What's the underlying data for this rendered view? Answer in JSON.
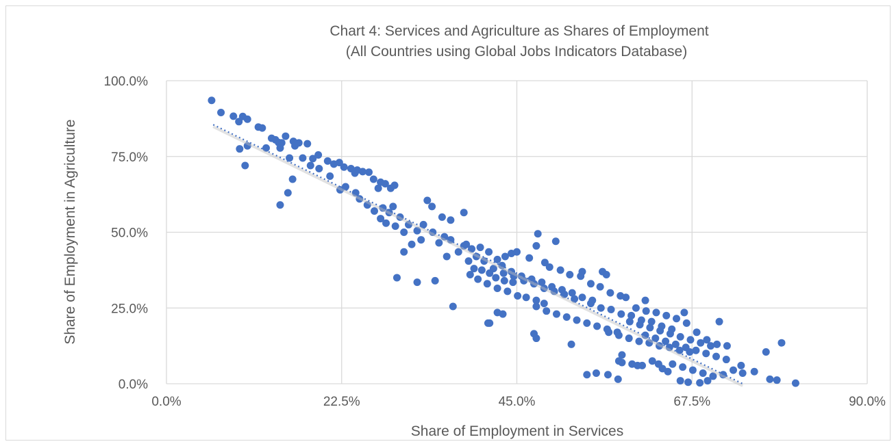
{
  "chart_data": {
    "type": "scatter",
    "title": "Chart 4: Services and Agriculture as Shares of Employment",
    "subtitle": "(All Countries using Global Jobs Indicators Database)",
    "xlabel": "Share of Employment in Services",
    "ylabel": "Share of Employment in Agriculture",
    "xlim": [
      0,
      90
    ],
    "ylim": [
      0,
      100
    ],
    "x_ticks": [
      "0.0%",
      "22.5%",
      "45.0%",
      "67.5%",
      "90.0%"
    ],
    "y_ticks": [
      "0.0%",
      "25.0%",
      "50.0%",
      "75.0%",
      "100.0%"
    ],
    "grid": true,
    "legend": "none",
    "color": "#4472c4",
    "trendline": {
      "style": "dotted linear",
      "x": [
        6,
        74
      ],
      "y": [
        85.5,
        0
      ]
    },
    "points": [
      [
        5.8,
        93.5
      ],
      [
        7,
        89.5
      ],
      [
        8.6,
        88.3
      ],
      [
        9.3,
        86.5
      ],
      [
        9.8,
        88.2
      ],
      [
        10.4,
        87.3
      ],
      [
        9.4,
        77.5
      ],
      [
        10.4,
        78.5
      ],
      [
        10.1,
        72
      ],
      [
        11.8,
        84.7
      ],
      [
        12.3,
        84.4
      ],
      [
        12.8,
        77.8
      ],
      [
        13.5,
        81
      ],
      [
        14,
        80.5
      ],
      [
        14.4,
        79.6
      ],
      [
        14.8,
        79.5
      ],
      [
        15.3,
        81.7
      ],
      [
        14.6,
        77.8
      ],
      [
        15.8,
        74.5
      ],
      [
        16.3,
        80
      ],
      [
        17,
        79.5
      ],
      [
        16.5,
        78.5
      ],
      [
        18.1,
        79.2
      ],
      [
        17.5,
        74.5
      ],
      [
        18.8,
        74.3
      ],
      [
        19.5,
        75.5
      ],
      [
        18.5,
        72
      ],
      [
        19.6,
        71
      ],
      [
        20.7,
        73.5
      ],
      [
        21.5,
        72.5
      ],
      [
        22.2,
        73
      ],
      [
        22.8,
        71.5
      ],
      [
        23.7,
        71
      ],
      [
        24.5,
        70.5
      ],
      [
        25.2,
        70
      ],
      [
        24.2,
        69.5
      ],
      [
        26,
        69.8
      ],
      [
        26.6,
        67.5
      ],
      [
        27.5,
        66.5
      ],
      [
        27.2,
        64.5
      ],
      [
        28.1,
        66
      ],
      [
        28.8,
        64.5
      ],
      [
        29.3,
        65.5
      ],
      [
        21,
        68.5
      ],
      [
        22.3,
        64
      ],
      [
        23,
        65
      ],
      [
        24.3,
        63
      ],
      [
        24.8,
        61
      ],
      [
        25.8,
        59
      ],
      [
        26.7,
        57
      ],
      [
        27.5,
        54.5
      ],
      [
        28.2,
        53
      ],
      [
        29.4,
        52
      ],
      [
        30.5,
        50
      ],
      [
        27.8,
        58
      ],
      [
        28.6,
        56.5
      ],
      [
        29.1,
        58.5
      ],
      [
        30,
        55
      ],
      [
        31.1,
        52.5
      ],
      [
        32.2,
        50.5
      ],
      [
        33,
        52.5
      ],
      [
        33.5,
        60.5
      ],
      [
        34.1,
        58.5
      ],
      [
        35.4,
        55
      ],
      [
        36.5,
        54
      ],
      [
        38.2,
        56.5
      ],
      [
        35,
        46.5
      ],
      [
        36.5,
        47.5
      ],
      [
        38.2,
        45.5
      ],
      [
        39.2,
        44.5
      ],
      [
        40.3,
        45
      ],
      [
        41.4,
        43.5
      ],
      [
        36,
        42
      ],
      [
        37.5,
        43.5
      ],
      [
        38.8,
        40.5
      ],
      [
        39.5,
        38
      ],
      [
        40.5,
        37.5
      ],
      [
        41.5,
        36.5
      ],
      [
        42.3,
        35
      ],
      [
        43.4,
        34
      ],
      [
        44.5,
        33.5
      ],
      [
        39,
        36
      ],
      [
        40,
        34.5
      ],
      [
        41.2,
        33
      ],
      [
        42.5,
        31.5
      ],
      [
        43.8,
        30.5
      ],
      [
        45.1,
        29
      ],
      [
        46.2,
        28.5
      ],
      [
        47.5,
        27.5
      ],
      [
        48.5,
        26.5
      ],
      [
        42,
        38
      ],
      [
        43.3,
        36.5
      ],
      [
        44.6,
        35.5
      ],
      [
        45.9,
        34
      ],
      [
        47.2,
        33
      ],
      [
        48.5,
        31.5
      ],
      [
        49.8,
        30.5
      ],
      [
        51.1,
        29.5
      ],
      [
        52.4,
        28
      ],
      [
        44.3,
        37
      ],
      [
        45.6,
        35.5
      ],
      [
        46.9,
        34.5
      ],
      [
        48.2,
        33.5
      ],
      [
        49.5,
        32
      ],
      [
        50.8,
        31
      ],
      [
        52.1,
        30
      ],
      [
        53.4,
        28.5
      ],
      [
        54.7,
        27.5
      ],
      [
        47.5,
        25.5
      ],
      [
        48.8,
        24
      ],
      [
        50.1,
        23
      ],
      [
        51.4,
        22
      ],
      [
        52.7,
        21
      ],
      [
        54,
        20
      ],
      [
        55.3,
        19
      ],
      [
        56.6,
        18
      ],
      [
        57.9,
        17
      ],
      [
        54.5,
        26.5
      ],
      [
        55.8,
        25
      ],
      [
        57.1,
        24.5
      ],
      [
        58.4,
        23
      ],
      [
        59.7,
        22.5
      ],
      [
        61,
        21
      ],
      [
        62.3,
        20.5
      ],
      [
        63.6,
        19
      ],
      [
        64.9,
        18
      ],
      [
        56.8,
        17
      ],
      [
        58.1,
        16
      ],
      [
        59.4,
        15
      ],
      [
        60.7,
        14
      ],
      [
        62,
        13.5
      ],
      [
        63.3,
        12.5
      ],
      [
        64.6,
        12
      ],
      [
        65.9,
        11
      ],
      [
        67.2,
        10.5
      ],
      [
        59.5,
        20.5
      ],
      [
        60.8,
        19.5
      ],
      [
        62.1,
        18.5
      ],
      [
        63.4,
        17.5
      ],
      [
        64.7,
        16.5
      ],
      [
        66,
        15.5
      ],
      [
        67.3,
        14.5
      ],
      [
        68.6,
        13.5
      ],
      [
        69.9,
        12.5
      ],
      [
        61.5,
        16
      ],
      [
        62.8,
        15
      ],
      [
        64.1,
        14
      ],
      [
        65.4,
        13
      ],
      [
        66.7,
        12
      ],
      [
        68,
        11
      ],
      [
        69.3,
        10
      ],
      [
        70.6,
        9
      ],
      [
        71.9,
        8
      ],
      [
        58.5,
        7
      ],
      [
        59.8,
        6.5
      ],
      [
        61.1,
        6
      ],
      [
        62.4,
        7.5
      ],
      [
        63.7,
        5
      ],
      [
        65,
        6.5
      ],
      [
        66.3,
        5.5
      ],
      [
        67.6,
        4.5
      ],
      [
        68.9,
        3.5
      ],
      [
        70.2,
        2.5
      ],
      [
        71.5,
        3
      ],
      [
        72.8,
        4.5
      ],
      [
        74,
        3.5
      ],
      [
        66,
        1
      ],
      [
        67,
        0.5
      ],
      [
        68.5,
        0.3
      ],
      [
        69.5,
        1
      ],
      [
        77.5,
        1.5
      ],
      [
        78.4,
        1.2
      ],
      [
        80.8,
        0.2
      ],
      [
        79,
        13.5
      ],
      [
        77,
        10.5
      ],
      [
        75.5,
        4
      ],
      [
        73.8,
        6
      ],
      [
        72,
        12.5
      ],
      [
        71,
        20.5
      ],
      [
        66.5,
        23.5
      ],
      [
        59,
        28.5
      ],
      [
        61.5,
        27.5
      ],
      [
        56,
        37
      ],
      [
        56.5,
        36
      ],
      [
        53.4,
        37
      ],
      [
        50,
        47
      ],
      [
        47.7,
        49.5
      ],
      [
        48.6,
        40
      ],
      [
        47.5,
        45.5
      ],
      [
        45,
        43.5
      ],
      [
        44.3,
        43
      ],
      [
        43.1,
        39
      ],
      [
        42.5,
        41
      ],
      [
        47.2,
        16.5
      ],
      [
        47.5,
        15
      ],
      [
        52,
        13
      ],
      [
        56.7,
        3
      ],
      [
        55.2,
        3.5
      ],
      [
        54,
        3
      ],
      [
        58,
        1.5
      ],
      [
        58.5,
        9.5
      ],
      [
        58.1,
        7.5
      ],
      [
        60.5,
        6
      ],
      [
        63.2,
        6.5
      ],
      [
        64.4,
        4
      ],
      [
        41.5,
        20
      ],
      [
        42.5,
        23.5
      ],
      [
        43.2,
        23
      ],
      [
        41.3,
        20
      ],
      [
        36.8,
        25.5
      ],
      [
        29.6,
        35
      ],
      [
        32.2,
        33.5
      ],
      [
        34.5,
        34
      ],
      [
        16.2,
        67.5
      ],
      [
        15.6,
        63
      ],
      [
        14.6,
        59
      ],
      [
        30.5,
        43.5
      ],
      [
        31.5,
        46
      ],
      [
        32.7,
        47.5
      ],
      [
        34.2,
        50
      ],
      [
        35.7,
        48.5
      ],
      [
        38.5,
        46
      ],
      [
        39.8,
        42
      ],
      [
        40.8,
        40.5
      ],
      [
        43.5,
        42
      ],
      [
        46.6,
        41.5
      ],
      [
        49.2,
        38.5
      ],
      [
        50.6,
        37.5
      ],
      [
        51.8,
        36
      ],
      [
        53.2,
        35.5
      ],
      [
        54.5,
        33
      ],
      [
        55.7,
        32
      ],
      [
        57,
        30
      ],
      [
        58.3,
        29
      ],
      [
        60.3,
        25
      ],
      [
        61.6,
        24
      ],
      [
        62.9,
        23.5
      ],
      [
        64.2,
        22.5
      ],
      [
        65.5,
        21.5
      ],
      [
        66.8,
        20
      ],
      [
        68.1,
        17
      ],
      [
        69.4,
        14.5
      ],
      [
        70.7,
        13
      ]
    ]
  }
}
